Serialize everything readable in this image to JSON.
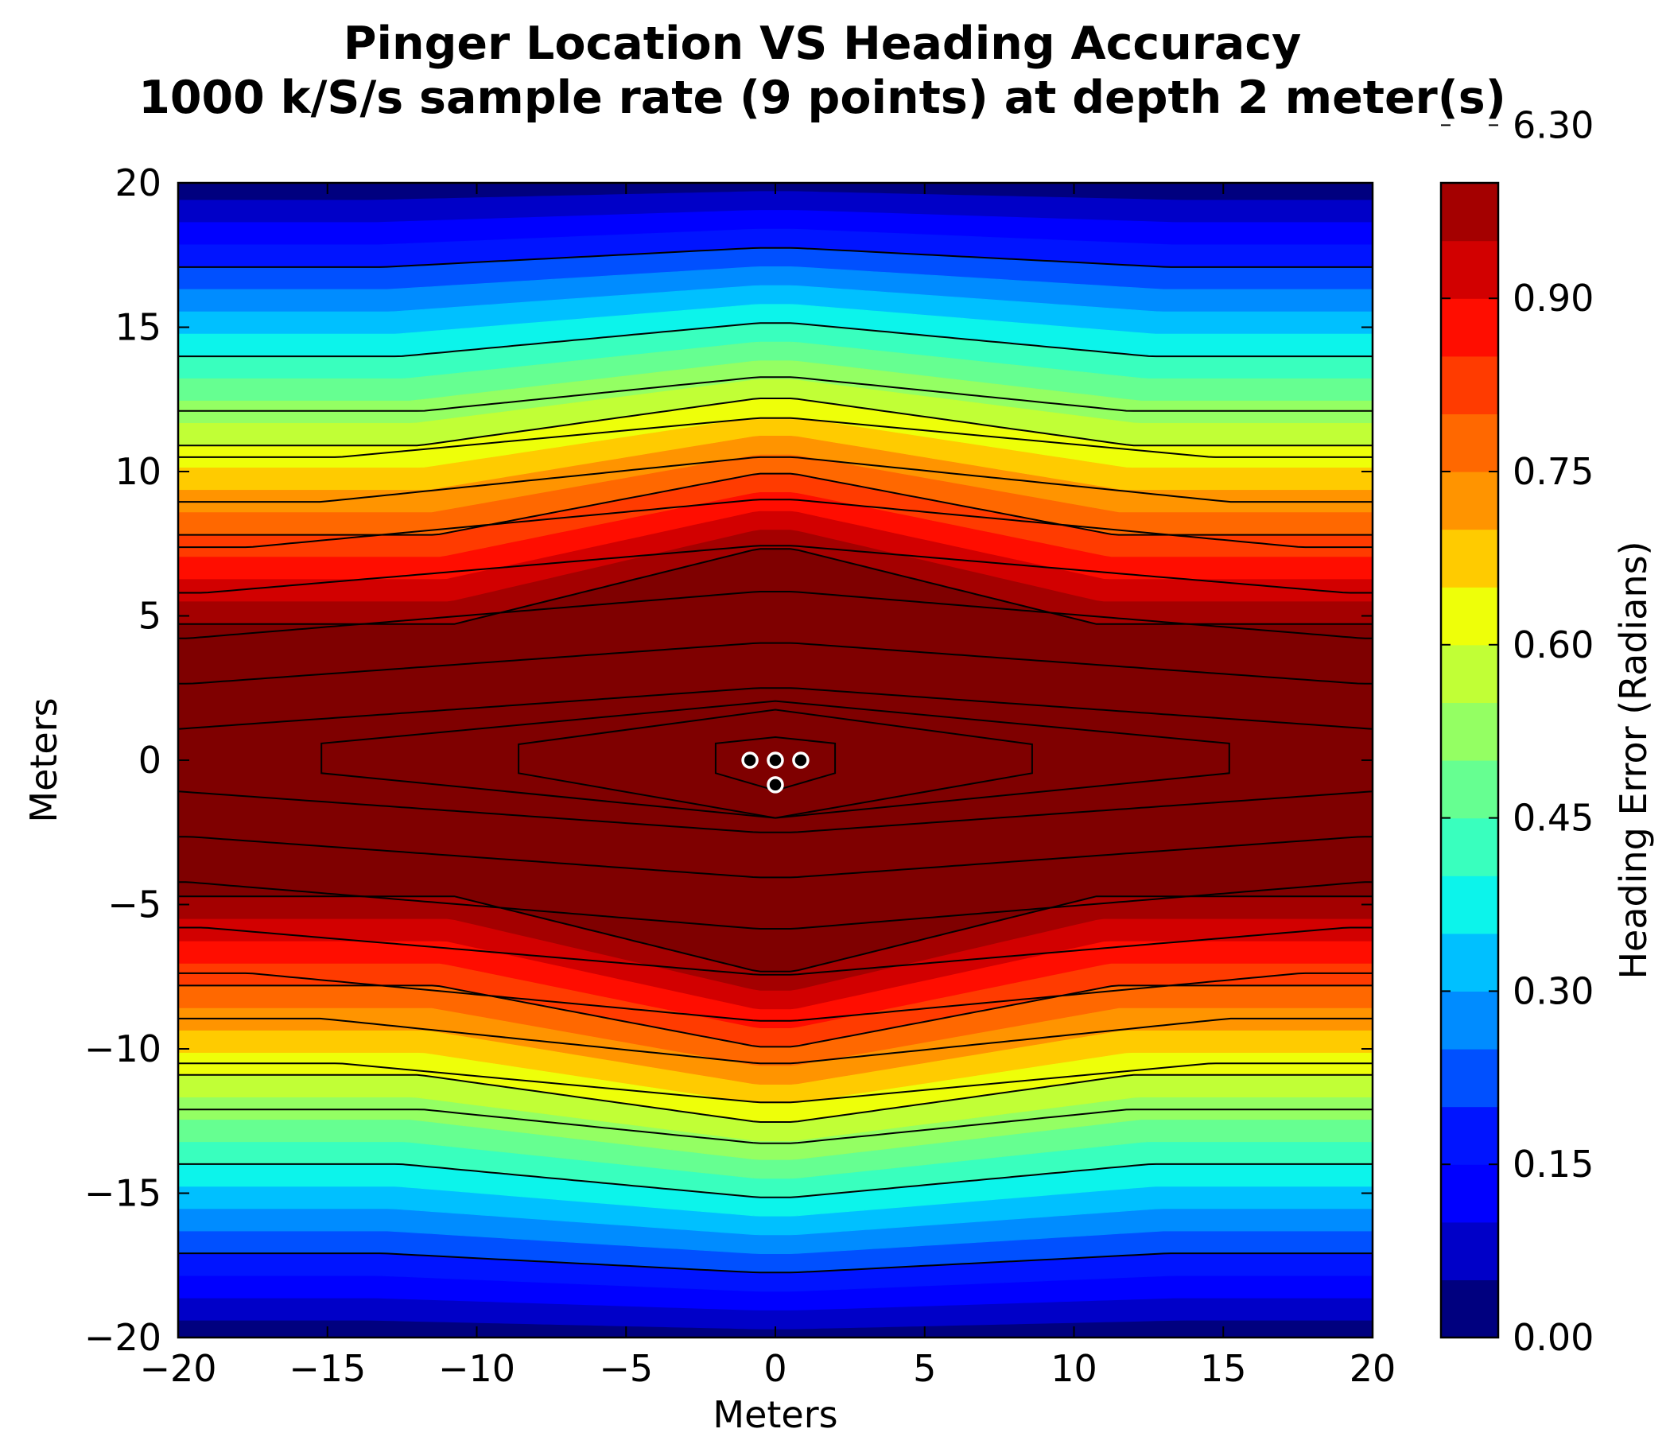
{
  "chart_data": {
    "type": "heatmap",
    "subtype": "filled-contour",
    "title_line1": "Pinger Location VS Heading Accuracy",
    "title_line2": "1000 k/S/s sample rate (9 points) at depth 2 meter(s)",
    "xlabel": "Meters",
    "ylabel": "Meters",
    "xlim": [
      -20,
      20
    ],
    "ylim": [
      -20,
      20
    ],
    "x_ticks": [
      -20,
      -15,
      -10,
      -5,
      0,
      5,
      10,
      15,
      20
    ],
    "y_ticks": [
      -20,
      -15,
      -10,
      -5,
      0,
      5,
      10,
      15,
      20
    ],
    "x_tick_labels": [
      "−20",
      "−15",
      "−10",
      "−5",
      "0",
      "5",
      "10",
      "15",
      "20"
    ],
    "y_tick_labels": [
      "−20",
      "−15",
      "−10",
      "−5",
      "0",
      "5",
      "10",
      "15",
      "20"
    ],
    "colorbar": {
      "label": "Heading Error (Radians)",
      "colormap": "jet",
      "range": [
        0,
        6.3
      ],
      "tick_values": [
        0.0,
        0.15,
        0.3,
        0.45,
        0.6,
        0.75,
        0.9,
        6.3
      ],
      "tick_labels": [
        "0.00",
        "0.15",
        "0.30",
        "0.45",
        "0.60",
        "0.75",
        "0.90",
        "6.30"
      ],
      "levels": [
        0.0,
        0.05,
        0.1,
        0.15,
        0.2,
        0.25,
        0.3,
        0.35,
        0.4,
        0.45,
        0.5,
        0.55,
        0.6,
        0.65,
        0.7,
        0.75,
        0.8,
        0.85,
        0.9,
        0.95,
        1.0,
        6.3
      ],
      "band_colors": [
        "#00007f",
        "#0000c8",
        "#0000ff",
        "#0014ff",
        "#0050ff",
        "#008cff",
        "#00c0ff",
        "#0cf4eb",
        "#39ffbe",
        "#66ff91",
        "#94ff63",
        "#c1ff36",
        "#eeff09",
        "#ffcb00",
        "#ff9400",
        "#ff6800",
        "#ff3b00",
        "#ff0d00",
        "#d20000",
        "#a40000",
        "#7f0000"
      ]
    },
    "hydrophones": [
      {
        "x": -0.85,
        "y": 0.0
      },
      {
        "x": 0.0,
        "y": 0.0
      },
      {
        "x": 0.85,
        "y": 0.0
      },
      {
        "x": 0.0,
        "y": -0.85
      }
    ]
  }
}
